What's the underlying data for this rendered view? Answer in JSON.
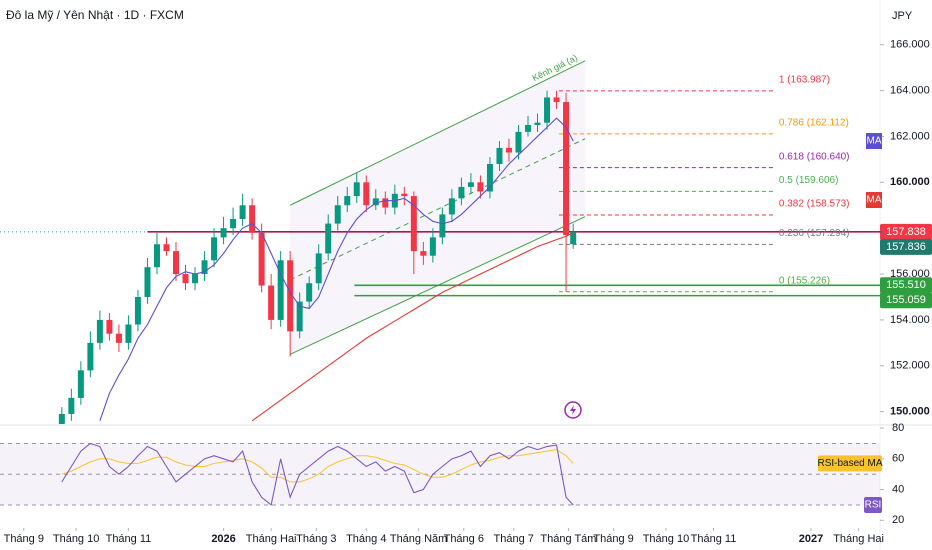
{
  "chart_data": {
    "type": "candlestick",
    "title": "Đô la Mỹ / Yên Nhật · 1D · FXCM",
    "currency": "JPY",
    "up_color": "#089981",
    "down_color": "#f23645",
    "x": [
      26,
      30,
      34,
      38,
      42,
      46,
      50,
      54,
      58,
      62,
      66,
      70,
      74,
      78,
      82,
      86,
      90,
      94,
      98,
      102,
      106,
      110,
      114,
      118,
      122,
      126,
      130,
      134,
      138,
      142,
      146,
      150,
      154,
      158,
      162,
      166,
      170,
      174,
      178,
      182,
      186,
      190,
      194,
      198,
      202,
      206,
      210,
      214,
      218,
      222,
      226,
      230,
      234,
      238,
      241
    ],
    "open": [
      149.4,
      149.9,
      150.6,
      151.8,
      153.0,
      154.0,
      153.4,
      153.0,
      153.8,
      155.0,
      156.3,
      157.3,
      157.0,
      156.0,
      155.6,
      156.0,
      156.6,
      157.6,
      158.0,
      158.4,
      159.0,
      157.8,
      155.5,
      154.0,
      156.6,
      153.5,
      154.8,
      155.6,
      156.9,
      158.2,
      159.0,
      159.4,
      160.0,
      159.0,
      159.3,
      158.9,
      159.5,
      159.4,
      157.0,
      156.8,
      157.6,
      158.6,
      159.3,
      159.8,
      160.0,
      159.6,
      160.8,
      161.5,
      161.3,
      162.2,
      162.5,
      162.6,
      163.7,
      163.5,
      157.3
    ],
    "high": [
      150.2,
      151.0,
      152.2,
      153.5,
      154.4,
      154.3,
      153.8,
      154.2,
      155.3,
      156.7,
      157.8,
      157.6,
      157.4,
      156.4,
      156.3,
      157.0,
      158.0,
      158.5,
      158.9,
      159.5,
      159.3,
      158.2,
      156.0,
      157.0,
      157.0,
      155.2,
      155.9,
      157.3,
      158.6,
      159.4,
      159.8,
      160.4,
      160.3,
      159.7,
      159.6,
      159.9,
      159.8,
      159.6,
      157.4,
      158.0,
      158.9,
      159.7,
      160.2,
      160.4,
      160.3,
      161.1,
      161.8,
      161.9,
      162.5,
      162.9,
      163.0,
      164.0,
      163.99,
      163.9,
      158.2
    ],
    "low": [
      149.0,
      149.6,
      150.3,
      151.5,
      152.7,
      153.1,
      152.6,
      152.7,
      153.5,
      154.7,
      156.0,
      156.8,
      155.7,
      155.3,
      155.3,
      155.7,
      156.3,
      157.3,
      157.7,
      158.1,
      157.5,
      155.2,
      153.6,
      153.7,
      152.4,
      153.2,
      154.5,
      155.3,
      156.6,
      157.9,
      158.7,
      159.1,
      158.7,
      158.8,
      158.6,
      158.6,
      159.0,
      156.0,
      156.4,
      156.5,
      157.3,
      158.3,
      159.0,
      159.5,
      159.3,
      159.3,
      160.5,
      160.9,
      161.0,
      162.0,
      162.2,
      162.3,
      163.2,
      155.23,
      157.1
    ],
    "close": [
      149.9,
      150.6,
      151.8,
      153.0,
      154.0,
      153.4,
      153.0,
      153.8,
      155.0,
      156.3,
      157.3,
      157.0,
      156.0,
      155.6,
      156.0,
      156.6,
      157.6,
      158.0,
      158.4,
      159.0,
      157.8,
      155.5,
      154.0,
      156.6,
      153.5,
      154.8,
      155.6,
      156.9,
      158.2,
      159.0,
      159.4,
      160.0,
      159.0,
      159.3,
      158.9,
      159.5,
      159.4,
      157.0,
      156.8,
      157.6,
      158.6,
      159.3,
      159.8,
      160.0,
      159.6,
      160.8,
      161.5,
      161.3,
      162.2,
      162.5,
      162.6,
      163.7,
      163.5,
      157.7,
      157.84
    ],
    "series": [
      {
        "name": "MA",
        "color": "#5b4fd6",
        "values": [
          null,
          null,
          null,
          null,
          149.6,
          150.8,
          151.6,
          152.3,
          153.2,
          153.8,
          154.6,
          155.4,
          155.9,
          156.1,
          156.0,
          156.1,
          156.4,
          156.9,
          157.5,
          158.0,
          158.2,
          157.8,
          156.9,
          156.0,
          155.2,
          154.6,
          154.5,
          155.0,
          156.0,
          157.0,
          157.8,
          158.4,
          158.8,
          159.1,
          159.2,
          159.2,
          159.3,
          159.0,
          158.6,
          158.3,
          158.2,
          158.3,
          158.6,
          159.0,
          159.4,
          159.8,
          160.3,
          160.8,
          161.2,
          161.6,
          162.0,
          162.4,
          162.8,
          162.4,
          161.8
        ]
      },
      {
        "name": "MA",
        "color": "#e53935",
        "values": [
          null,
          null,
          null,
          null,
          null,
          null,
          null,
          null,
          null,
          null,
          null,
          null,
          null,
          null,
          null,
          null,
          null,
          null,
          null,
          null,
          149.6,
          149.9,
          150.2,
          150.5,
          150.8,
          151.1,
          151.4,
          151.7,
          152.0,
          152.3,
          152.6,
          152.9,
          153.2,
          153.45,
          153.7,
          153.95,
          154.2,
          154.45,
          154.7,
          154.95,
          155.2,
          155.4,
          155.6,
          155.8,
          156.0,
          156.2,
          156.4,
          156.6,
          156.8,
          157.0,
          157.2,
          157.35,
          157.5,
          157.65,
          157.8
        ]
      }
    ],
    "xlim": [
      0,
      370
    ],
    "xticks": [
      {
        "value": 10,
        "label": "Tháng 9"
      },
      {
        "value": 32,
        "label": "Tháng 10"
      },
      {
        "value": 54,
        "label": "Tháng 11"
      },
      {
        "value": 94,
        "label": "2026"
      },
      {
        "value": 114,
        "label": "Tháng Hai"
      },
      {
        "value": 133,
        "label": "Tháng 3"
      },
      {
        "value": 154,
        "label": "Tháng 4"
      },
      {
        "value": 176,
        "label": "Tháng Năm"
      },
      {
        "value": 195,
        "label": "Tháng 6"
      },
      {
        "value": 216,
        "label": "Tháng 7"
      },
      {
        "value": 239,
        "label": "Tháng Tám"
      },
      {
        "value": 258,
        "label": "Tháng 9"
      },
      {
        "value": 280,
        "label": "Tháng 10"
      },
      {
        "value": 300,
        "label": "Tháng 11"
      },
      {
        "value": 341,
        "label": "2027"
      },
      {
        "value": 361,
        "label": "Tháng Hai"
      }
    ],
    "ylim": [
      149.2,
      167.95
    ],
    "yticks": [
      {
        "value": 166,
        "label": "166.000"
      },
      {
        "value": 164,
        "label": "164.000"
      },
      {
        "value": 162,
        "label": "162.000"
      },
      {
        "value": 160,
        "label": "160.000"
      },
      {
        "value": 156,
        "label": "156.000"
      },
      {
        "value": 154,
        "label": "154.000"
      },
      {
        "value": 152,
        "label": "152.000"
      },
      {
        "value": 150,
        "label": "150.000"
      }
    ],
    "channel": {
      "label": "Kênh giá (a)",
      "color": "#43a047",
      "x": [
        122,
        246
      ],
      "upper": [
        159.0,
        165.3
      ],
      "lower": [
        152.5,
        158.5
      ]
    },
    "fib": {
      "x": [
        235,
        326
      ],
      "levels": [
        {
          "value": 163.987,
          "label": "1 (163.987)",
          "color": "#f23645"
        },
        {
          "value": 162.112,
          "label": "0.786 (162.112)",
          "color": "#ff9800"
        },
        {
          "value": 160.64,
          "label": "0.618 (160.640)",
          "color": "#9c27b0"
        },
        {
          "value": 159.606,
          "label": "0.5 (159.606)",
          "color": "#4caf50"
        },
        {
          "value": 158.573,
          "label": "0.382 (158.573)",
          "color": "#f23645"
        },
        {
          "value": 157.294,
          "label": "0.236 (157.294)",
          "color": "#787b86"
        },
        {
          "value": 155.226,
          "label": "0 (155.226)",
          "color": "#4caf50"
        }
      ]
    },
    "hlines": [
      {
        "value": 157.84,
        "color": "#b0174f",
        "x": [
          62,
          370
        ],
        "style": "solid"
      },
      {
        "value": 157.84,
        "color": "#26a69a",
        "x": [
          0,
          62
        ],
        "style": "dotted"
      },
      {
        "value": 155.51,
        "color": "#2e9e3e",
        "x": [
          149,
          370
        ],
        "style": "solid"
      },
      {
        "value": 155.059,
        "color": "#2e9e3e",
        "x": [
          149,
          370
        ],
        "style": "solid"
      }
    ],
    "price_tags": [
      {
        "value": 157.838,
        "label": "157.838",
        "color": "#f23645"
      },
      {
        "value": 157.836,
        "label": "157.836",
        "color": "#1f7a6e"
      },
      {
        "value": 155.51,
        "label": "155.510",
        "color": "#2e9e3e"
      },
      {
        "value": 155.059,
        "label": "155.059",
        "color": "#2e9e3e"
      }
    ],
    "rsi": {
      "name": "RSI",
      "color": "#7e57c2",
      "ma_name": "RSI-based MA",
      "ma_color": "#f9c22e",
      "values": [
        45,
        55,
        65,
        70,
        68,
        55,
        50,
        55,
        62,
        68,
        65,
        55,
        45,
        50,
        55,
        60,
        62,
        60,
        58,
        65,
        45,
        35,
        30,
        60,
        35,
        50,
        55,
        60,
        65,
        68,
        65,
        60,
        55,
        58,
        52,
        55,
        52,
        38,
        40,
        50,
        55,
        60,
        62,
        65,
        55,
        62,
        64,
        60,
        65,
        68,
        66,
        68,
        69,
        35,
        30
      ],
      "ma_values": [
        50,
        52,
        55,
        58,
        60,
        60,
        58,
        57,
        57,
        59,
        61,
        61,
        58,
        56,
        55,
        55,
        57,
        58,
        59,
        60,
        58,
        54,
        48,
        48,
        45,
        45,
        47,
        50,
        55,
        58,
        60,
        62,
        62,
        61,
        59,
        57,
        56,
        53,
        50,
        48,
        48,
        50,
        53,
        56,
        58,
        59,
        61,
        62,
        62,
        63,
        64,
        65,
        66,
        62,
        57
      ],
      "ylim": [
        15,
        82
      ],
      "yticks": [
        80,
        60,
        40,
        20
      ],
      "levels": [
        70,
        50,
        30
      ]
    }
  }
}
